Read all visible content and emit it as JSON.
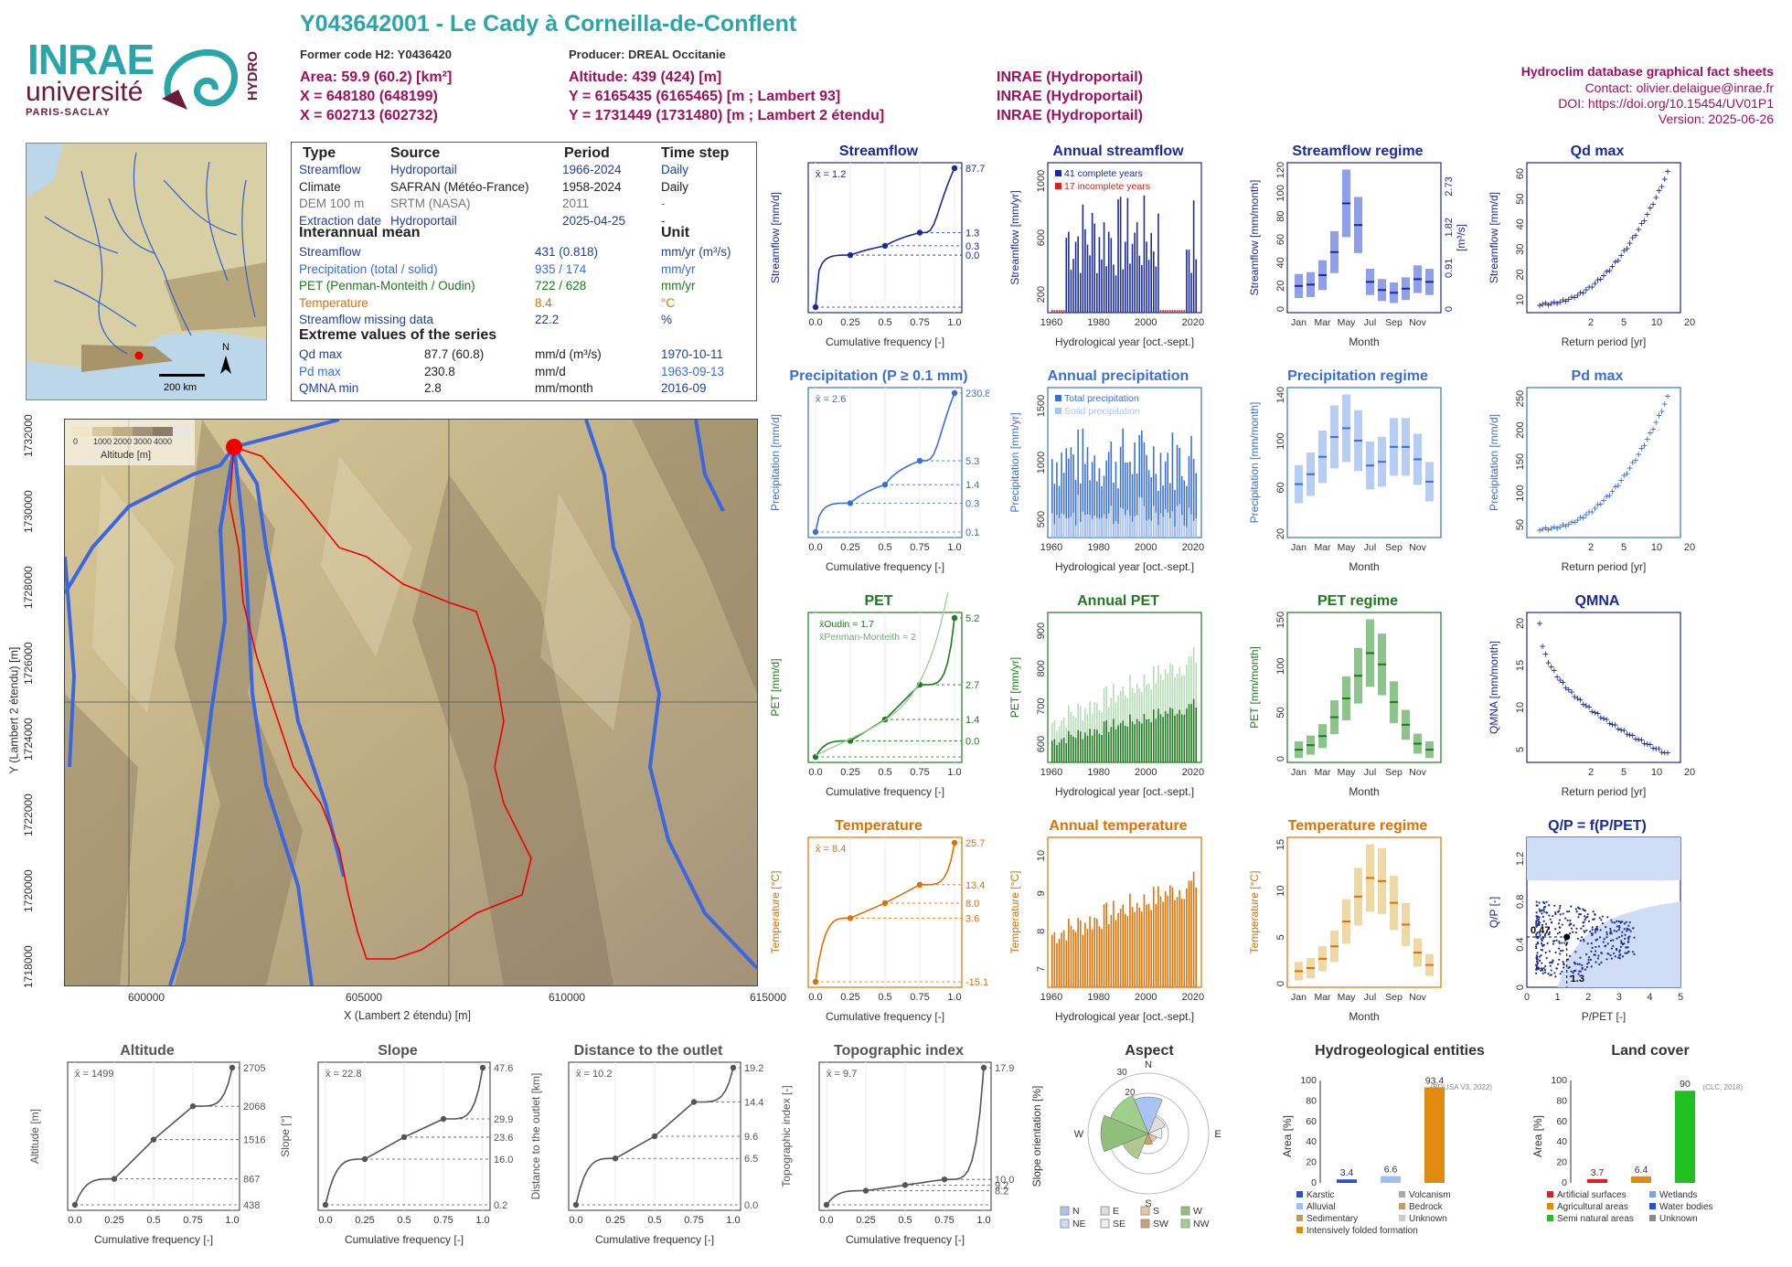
{
  "header": {
    "title": "Y043642001 - Le Cady à Corneilla-de-Conflent",
    "former_code": "Former code H2: Y0436420",
    "producer": "Producer: DREAL Occitanie",
    "area": "Area: 59.9 (60.2) [km²]",
    "x": "X = 648180 (648199)",
    "x2": "X = 602713 (602732)",
    "altitude": "Altitude: 439 (424) [m]",
    "y": "Y = 6165435 (6165465) [m ; Lambert 93]",
    "y2": "Y = 1731449 (1731480) [m ; Lambert 2 étendu]",
    "src1": "INRAE (Hydroportail)",
    "src2": "INRAE (Hydroportail)",
    "src3": "INRAE (Hydroportail)",
    "db_title": "Hydroclim database graphical fact sheets",
    "contact": "Contact: olivier.delaigue@inrae.fr",
    "doi": "DOI: https://doi.org/10.15454/UV01P1",
    "version": "Version: 2025-06-26"
  },
  "logos": {
    "inrae": "INRAE",
    "universite": "université",
    "paris_saclay": "PARIS-SACLAY",
    "hydro": "HYDRO"
  },
  "info": {
    "h_type": "Type",
    "h_source": "Source",
    "h_period": "Period",
    "h_step": "Time step",
    "rows": [
      {
        "type": "Streamflow",
        "source": "Hydroportail",
        "period": "1966-2024",
        "step": "Daily",
        "color": "#2040a0"
      },
      {
        "type": "Climate",
        "source": "SAFRAN (Météo-France)",
        "period": "1958-2024",
        "step": "Daily",
        "color": "#222222"
      },
      {
        "type": "DEM 100 m",
        "source": "SRTM (NASA)",
        "period": "2011",
        "step": "-",
        "color": "#777777"
      },
      {
        "type": "Extraction date",
        "source": "Hydroportail",
        "period": "2025-04-25",
        "step": "-",
        "color": "#2040a0"
      }
    ],
    "h_inter": "Interannual mean",
    "h_unit": "Unit",
    "inter": [
      {
        "label": "Streamflow",
        "value": "431 (0.818)",
        "unit": "mm/yr (m³/s)",
        "color": "#2040a0"
      },
      {
        "label": "Precipitation (total / solid)",
        "value": "935 / 174",
        "unit": "mm/yr",
        "color": "#3a6fd8"
      },
      {
        "label": "PET (Penman-Monteith / Oudin)",
        "value": "722 / 628",
        "unit": "mm/yr",
        "color": "#1e7a1e"
      },
      {
        "label": "Temperature",
        "value": "8.4",
        "unit": "°C",
        "color": "#e07000"
      },
      {
        "label": "Streamflow missing data",
        "value": "22.2",
        "unit": "%",
        "color": "#2040a0"
      }
    ],
    "h_extreme": "Extreme values of the series",
    "extreme": [
      {
        "label": "Qd max",
        "value": "87.7 (60.8)",
        "unit": "mm/d (m³/s)",
        "date": "1970-10-11",
        "color": "#2040a0"
      },
      {
        "label": "Pd max",
        "value": "230.8",
        "unit": "mm/d",
        "date": "1963-09-13",
        "color": "#3a6fd8"
      },
      {
        "label": "QMNA min",
        "value": "2.8",
        "unit": "mm/month",
        "date": "2016-09",
        "color": "#2040a0"
      }
    ]
  },
  "inset": {
    "scale": "200 km",
    "north": "N"
  },
  "mainmap": {
    "legend_title": "Altitude [m]",
    "legend_ticks": [
      "0",
      "1000",
      "2000",
      "3000",
      "4000"
    ],
    "xlabel": "X (Lambert 2 étendu) [m]",
    "ylabel": "Y (Lambert 2 étendu) [m]",
    "xticks": [
      "600000",
      "605000",
      "610000",
      "615000"
    ],
    "yticks": [
      "1732000",
      "1730000",
      "1728000",
      "1726000",
      "1724000",
      "1722000",
      "1720000",
      "1718000"
    ]
  },
  "colors": {
    "flow": "#1a2a9a",
    "precip": "#3a6fd8",
    "pet": "#1e7a1e",
    "temp": "#e07000",
    "grey": "#555555"
  },
  "chart_data": [
    {
      "type": "line",
      "title": "Streamflow",
      "xlabel": "Cumulative frequency [-]",
      "ylabel": "Streamflow [mm/d]",
      "scale": "log",
      "mean_label": "x̄ = 1.2",
      "right_labels": [
        "87.7",
        "1.3",
        "0.3",
        "0.0"
      ],
      "x": [
        0,
        0.25,
        0.5,
        0.75,
        1
      ],
      "y": [
        0.01,
        0.3,
        0.55,
        1.3,
        87.7
      ]
    },
    {
      "type": "bar",
      "title": "Annual streamflow",
      "xlabel": "Hydrological year [oct.-sept.]",
      "ylabel": "Streamflow [mm/yr]",
      "legend": [
        "41 complete years",
        "17 incomplete years"
      ],
      "xticks": [
        "1960",
        "1980",
        "2000",
        "2020"
      ],
      "yticks": [
        "200",
        "600",
        "1000"
      ]
    },
    {
      "type": "bar",
      "title": "Streamflow regime",
      "xlabel": "Month",
      "ylabel": "Streamflow [mm/month]",
      "ylabel_right": "[m³/s]",
      "months": [
        "Jan",
        "Mar",
        "May",
        "Jul",
        "Sep",
        "Nov"
      ],
      "values": [
        17,
        18,
        25,
        42,
        78,
        62,
        20,
        14,
        12,
        15,
        22,
        20
      ],
      "yticks": [
        "0",
        "20",
        "40",
        "60",
        "80",
        "100",
        "120"
      ],
      "right_ticks": [
        "0",
        "0.91",
        "1.82",
        "2.73"
      ]
    },
    {
      "type": "scatter",
      "title": "Qd max",
      "xlabel": "Return period [yr]",
      "ylabel": "Streamflow [mm/d]",
      "xticks": [
        "2",
        "5",
        "10",
        "20",
        "50"
      ],
      "yticks": [
        "10",
        "20",
        "30",
        "40",
        "50",
        "60"
      ]
    },
    {
      "type": "line",
      "title": "Precipitation (P ≥ 0.1 mm)",
      "xlabel": "Cumulative frequency [-]",
      "ylabel": "Precipitation [mm/d]",
      "scale": "log",
      "mean_label": "x̄ = 2.6",
      "right_labels": [
        "230.8",
        "5.3",
        "1.4",
        "0.3",
        "0.1"
      ],
      "x": [
        0,
        0.25,
        0.5,
        0.75,
        1
      ],
      "y": [
        0.1,
        0.5,
        1.4,
        5.3,
        230.8
      ]
    },
    {
      "type": "bar",
      "title": "Annual precipitation",
      "xlabel": "Hydrological year [oct.-sept.]",
      "ylabel": "Precipitation [mm/yr]",
      "legend": [
        "Total precipitation",
        "Solid precipitation"
      ],
      "xticks": [
        "1960",
        "1980",
        "2000",
        "2020"
      ],
      "yticks": [
        "500",
        "1000",
        "1500"
      ]
    },
    {
      "type": "bar",
      "title": "Precipitation regime",
      "xlabel": "Month",
      "ylabel": "Precipitation [mm/month]",
      "months": [
        "Jan",
        "Mar",
        "May",
        "Jul",
        "Sep",
        "Nov"
      ],
      "values": [
        40,
        48,
        62,
        78,
        85,
        75,
        55,
        58,
        70,
        70,
        60,
        42
      ],
      "yticks": [
        "20",
        "60",
        "100",
        "140"
      ]
    },
    {
      "type": "scatter",
      "title": "Pd max",
      "xlabel": "Return period [yr]",
      "ylabel": "Precipitation [mm/d]",
      "xticks": [
        "2",
        "5",
        "10",
        "20",
        "50"
      ],
      "yticks": [
        "50",
        "100",
        "150",
        "200",
        "250"
      ]
    },
    {
      "type": "line",
      "title": "PET",
      "xlabel": "Cumulative frequency [-]",
      "ylabel": "PET [mm/d]",
      "mean_label_1": "x̄Oudin = 1.7",
      "mean_label_2": "x̄Penman-Monteith = 2",
      "right_labels": [
        "5.2",
        "2.7",
        "1.4",
        "0.0"
      ],
      "x": [
        0,
        0.25,
        0.5,
        0.75,
        1
      ],
      "y": [
        0.0,
        0.6,
        1.4,
        2.7,
        5.2
      ]
    },
    {
      "type": "bar",
      "title": "Annual PET",
      "xlabel": "Hydrological year [oct.-sept.]",
      "ylabel": "PET [mm/yr]",
      "xticks": [
        "1960",
        "1980",
        "2000",
        "2020"
      ],
      "yticks": [
        "600",
        "700",
        "800",
        "900"
      ]
    },
    {
      "type": "bar",
      "title": "PET regime",
      "xlabel": "Month",
      "ylabel": "PET [mm/month]",
      "months": [
        "Jan",
        "Mar",
        "May",
        "Jul",
        "Sep",
        "Nov"
      ],
      "values": [
        12,
        18,
        30,
        55,
        80,
        110,
        140,
        125,
        75,
        45,
        20,
        12
      ],
      "yticks": [
        "0",
        "50",
        "100",
        "150"
      ]
    },
    {
      "type": "scatter",
      "title": "QMNA",
      "xlabel": "Return period [yr]",
      "ylabel": "QMNA [mm/month]",
      "xticks": [
        "2",
        "5",
        "10",
        "20",
        "50"
      ],
      "yticks": [
        "5",
        "10",
        "15",
        "20"
      ]
    },
    {
      "type": "line",
      "title": "Temperature",
      "xlabel": "Cumulative frequency [-]",
      "ylabel": "Temperature [°C]",
      "mean_label": "x̄ = 8.4",
      "right_labels": [
        "25.7",
        "13.4",
        "8.0",
        "3.6",
        "-15.1"
      ],
      "x": [
        0,
        0.25,
        0.5,
        0.75,
        1
      ],
      "y": [
        -15.1,
        3.6,
        8.0,
        13.4,
        25.7
      ]
    },
    {
      "type": "bar",
      "title": "Annual temperature",
      "xlabel": "Hydrological year [oct.-sept.]",
      "ylabel": "Temperature [°C]",
      "xticks": [
        "1960",
        "1980",
        "2000",
        "2020"
      ],
      "yticks": [
        "7",
        "8",
        "9",
        "10"
      ]
    },
    {
      "type": "bar",
      "title": "Temperature regime",
      "xlabel": "Month",
      "ylabel": "Temperature [°C]",
      "months": [
        "Jan",
        "Mar",
        "May",
        "Jul",
        "Sep",
        "Nov"
      ],
      "values": [
        2,
        2.5,
        4,
        6,
        10,
        14,
        17,
        16.5,
        13,
        9.5,
        5,
        3
      ],
      "yticks": [
        "0",
        "5",
        "10",
        "15"
      ]
    },
    {
      "type": "scatter",
      "title": "Q/P = f(P/PET)",
      "xlabel": "P/PET [-]",
      "ylabel": "Q/P [-]",
      "labels": [
        "0.47",
        "1.3"
      ],
      "xticks": [
        "0",
        "1",
        "2",
        "3",
        "4",
        "5"
      ],
      "yticks": [
        "0",
        "0.4",
        "0.8",
        "1.2"
      ]
    },
    {
      "type": "line",
      "title": "Altitude",
      "xlabel": "Cumulative frequency [-]",
      "ylabel": "Altitude [m]",
      "mean_label": "x̄ = 1499",
      "right_labels": [
        "2705",
        "2068",
        "1516",
        "867",
        "438"
      ],
      "x": [
        0,
        0.25,
        0.5,
        0.75,
        1
      ],
      "y": [
        438,
        867,
        1516,
        2068,
        2705
      ]
    },
    {
      "type": "line",
      "title": "Slope",
      "xlabel": "Cumulative frequency [-]",
      "ylabel": "Slope [°]",
      "mean_label": "x̄ = 22.8",
      "right_labels": [
        "47.6",
        "29.9",
        "23.6",
        "16.0",
        "0.2"
      ],
      "x": [
        0,
        0.25,
        0.5,
        0.75,
        1
      ],
      "y": [
        0.2,
        16.0,
        23.6,
        29.9,
        47.6
      ]
    },
    {
      "type": "line",
      "title": "Distance to the outlet",
      "xlabel": "Cumulative frequency [-]",
      "ylabel": "Distance to the outlet [km]",
      "mean_label": "x̄ = 10.2",
      "right_labels": [
        "19.2",
        "14.4",
        "9.6",
        "6.5",
        "0.0"
      ],
      "x": [
        0,
        0.25,
        0.5,
        0.75,
        1
      ],
      "y": [
        0.0,
        6.5,
        9.6,
        14.4,
        19.2
      ]
    },
    {
      "type": "line",
      "title": "Topographic index",
      "xlabel": "Cumulative frequency [-]",
      "ylabel": "Topographic index [-]",
      "mean_label": "x̄ = 9.7",
      "right_labels": [
        "17.9",
        "10.0",
        "9.2",
        "8.2"
      ],
      "x": [
        0,
        0.25,
        0.5,
        0.75,
        1
      ],
      "y": [
        8.2,
        9.2,
        9.6,
        10.0,
        17.9
      ]
    },
    {
      "type": "pie",
      "title": "Aspect",
      "ylabel": "Slope orientation [%]",
      "legend": [
        "N",
        "E",
        "S",
        "W",
        "NE",
        "SE",
        "SW",
        "NW"
      ],
      "rings": [
        "10",
        "20",
        "30"
      ]
    },
    {
      "type": "bar",
      "title": "Hydrogeological entities",
      "ylabel": "Area [%]",
      "note": "(BDLISA V3, 2022)",
      "categories": [
        "Karstic",
        "Alluvial",
        "Intensively folded formation"
      ],
      "values": [
        3.4,
        6.6,
        93.4
      ],
      "legend": [
        "Karstic",
        "Volcanism",
        "Alluvial",
        "Bedrock",
        "Sedimentary",
        "Unknown",
        "Intensively folded formation"
      ],
      "yticks": [
        "0",
        "20",
        "40",
        "60",
        "80",
        "100"
      ]
    },
    {
      "type": "bar",
      "title": "Land cover",
      "ylabel": "Area [%]",
      "note": "(CLC, 2018)",
      "categories": [
        "Artificial surfaces",
        "Agricultural areas",
        "Semi natural areas"
      ],
      "values": [
        3.7,
        6.4,
        90
      ],
      "legend": [
        "Artificial surfaces",
        "Wetlands",
        "Agricultural areas",
        "Water bodies",
        "Semi natural areas",
        "Unknown"
      ],
      "yticks": [
        "0",
        "20",
        "40",
        "60",
        "80",
        "100"
      ]
    }
  ]
}
